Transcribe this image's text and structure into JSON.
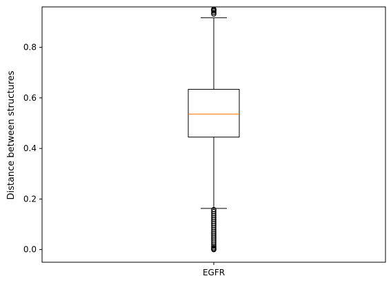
{
  "chart_data": {
    "type": "box",
    "title": "",
    "xlabel": "",
    "ylabel": "Distance between structures",
    "categories": [
      "EGFR"
    ],
    "ylim": [
      -0.05,
      0.96
    ],
    "yticks": [
      0.0,
      0.2,
      0.4,
      0.6,
      0.8
    ],
    "ytick_labels": [
      "0.0",
      "0.2",
      "0.4",
      "0.6",
      "0.8"
    ],
    "grid": false,
    "boxes": [
      {
        "category": "EGFR",
        "q1": 0.445,
        "median": 0.536,
        "q3": 0.634,
        "whisker_low": 0.163,
        "whisker_high": 0.917,
        "fliers_high": [
          0.932,
          0.938,
          0.944,
          0.948,
          0.951
        ],
        "fliers_low": [
          0.158,
          0.15,
          0.142,
          0.134,
          0.126,
          0.118,
          0.11,
          0.102,
          0.094,
          0.086,
          0.078,
          0.07,
          0.062,
          0.054,
          0.046,
          0.038,
          0.03,
          0.022,
          0.014,
          0.008,
          0.003,
          0.0
        ]
      }
    ],
    "colors": {
      "box": "#000000",
      "median": "#ff7f0e",
      "whisker": "#000000",
      "flier": "#000000"
    }
  }
}
